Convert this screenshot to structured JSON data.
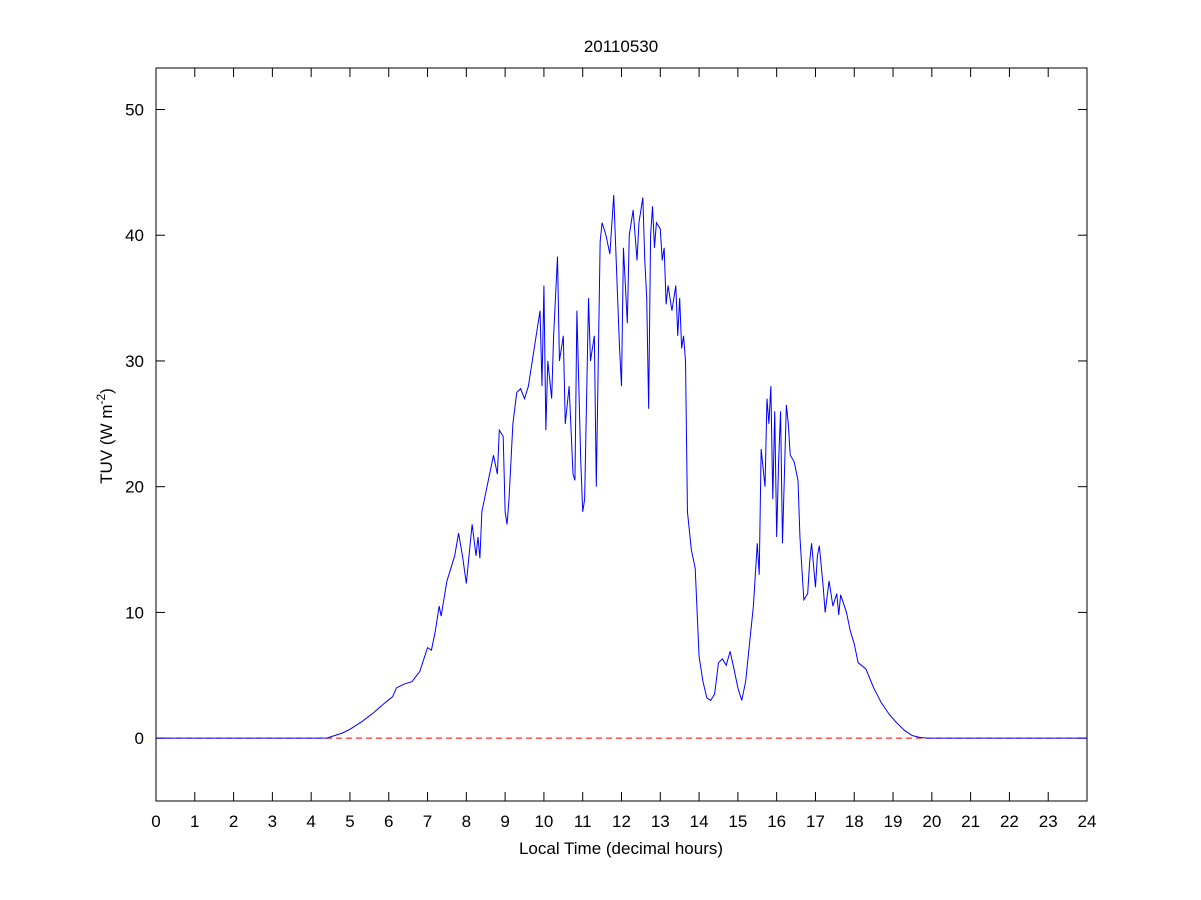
{
  "chart_data": {
    "type": "line",
    "title": "20110530",
    "x_label": "Local Time (decimal hours)",
    "y_label": {
      "text": "TUV (W m",
      "sup": "-2",
      "end": ")"
    },
    "x": [
      0,
      4.4,
      4.5,
      4.8,
      5.0,
      5.3,
      5.6,
      5.9,
      6.1,
      6.2,
      6.4,
      6.6,
      6.8,
      7.0,
      7.1,
      7.2,
      7.3,
      7.35,
      7.5,
      7.7,
      7.8,
      7.9,
      8.0,
      8.1,
      8.15,
      8.25,
      8.3,
      8.35,
      8.4,
      8.5,
      8.6,
      8.7,
      8.8,
      8.85,
      8.95,
      9.0,
      9.05,
      9.1,
      9.2,
      9.3,
      9.4,
      9.5,
      9.6,
      9.7,
      9.8,
      9.9,
      9.95,
      10.0,
      10.05,
      10.1,
      10.2,
      10.25,
      10.35,
      10.4,
      10.5,
      10.55,
      10.65,
      10.75,
      10.8,
      10.85,
      10.95,
      11.0,
      11.05,
      11.1,
      11.15,
      11.2,
      11.3,
      11.35,
      11.45,
      11.5,
      11.6,
      11.7,
      11.8,
      11.9,
      11.95,
      12.0,
      12.05,
      12.1,
      12.15,
      12.2,
      12.3,
      12.35,
      12.4,
      12.45,
      12.55,
      12.6,
      12.65,
      12.7,
      12.75,
      12.8,
      12.85,
      12.9,
      13.0,
      13.05,
      13.1,
      13.15,
      13.2,
      13.3,
      13.4,
      13.45,
      13.5,
      13.55,
      13.6,
      13.65,
      13.7,
      13.8,
      13.9,
      13.95,
      14.0,
      14.1,
      14.2,
      14.3,
      14.4,
      14.5,
      14.6,
      14.7,
      14.8,
      14.9,
      15.0,
      15.1,
      15.2,
      15.3,
      15.4,
      15.5,
      15.55,
      15.6,
      15.7,
      15.75,
      15.8,
      15.85,
      15.9,
      15.95,
      16.0,
      16.05,
      16.1,
      16.15,
      16.25,
      16.3,
      16.35,
      16.45,
      16.55,
      16.6,
      16.7,
      16.8,
      16.85,
      16.9,
      17.0,
      17.05,
      17.1,
      17.2,
      17.25,
      17.35,
      17.45,
      17.55,
      17.6,
      17.65,
      17.8,
      17.9,
      18.0,
      18.1,
      18.3,
      18.5,
      18.7,
      18.9,
      19.1,
      19.3,
      19.5,
      19.7,
      19.9,
      24
    ],
    "values": [
      0,
      0,
      0.1,
      0.4,
      0.7,
      1.3,
      2.0,
      2.8,
      3.3,
      4.0,
      4.3,
      4.5,
      5.3,
      7.2,
      7.0,
      8.5,
      10.5,
      9.7,
      12.5,
      14.5,
      16.3,
      14.5,
      12.3,
      15.5,
      17,
      14.5,
      16,
      14.3,
      18.0,
      19.5,
      21,
      22.5,
      21,
      24.5,
      24,
      18,
      17,
      19,
      25,
      27.5,
      27.8,
      27,
      28,
      30,
      32,
      34,
      28,
      36,
      24.5,
      30,
      27,
      32,
      38.3,
      30,
      32,
      25,
      28,
      21,
      20.5,
      34,
      22,
      18,
      19,
      27,
      35,
      30,
      32,
      20,
      39.5,
      41,
      40,
      38.5,
      43.2,
      35,
      31,
      28,
      39,
      36,
      33,
      40,
      42,
      40,
      38,
      41,
      43,
      38,
      35,
      26.2,
      40,
      42.3,
      39,
      41,
      40.5,
      38,
      39,
      34.5,
      36,
      34,
      36,
      32,
      35,
      31,
      32,
      30,
      18,
      15,
      13.5,
      10,
      6.5,
      4.5,
      3.2,
      3.0,
      3.5,
      6.0,
      6.3,
      5.8,
      6.9,
      5.5,
      4.0,
      3.0,
      4.5,
      7.5,
      10.5,
      15.5,
      13,
      23,
      20,
      27,
      25,
      28,
      19,
      26,
      16,
      22,
      26,
      15.5,
      26.5,
      25,
      22.5,
      22,
      20.5,
      16,
      11,
      11.5,
      14,
      15.5,
      12,
      14.5,
      15.3,
      12,
      10,
      12.5,
      10.5,
      11.5,
      9.8,
      11.4,
      10,
      8.5,
      7.5,
      6,
      5.5,
      4.0,
      2.8,
      1.9,
      1.2,
      0.6,
      0.2,
      0.05,
      0,
      0
    ],
    "color": "#0000ff",
    "reference_line": {
      "value": 0,
      "color": "#ff0000",
      "style": "dashed"
    },
    "xlim": [
      0,
      24
    ],
    "xticks": [
      0,
      1,
      2,
      3,
      4,
      5,
      6,
      7,
      8,
      9,
      10,
      11,
      12,
      13,
      14,
      15,
      16,
      17,
      18,
      19,
      20,
      21,
      22,
      23,
      24
    ],
    "ylim": [
      -5,
      53.3
    ],
    "yticks": [
      0,
      10,
      20,
      30,
      40,
      50
    ],
    "grid": false
  }
}
